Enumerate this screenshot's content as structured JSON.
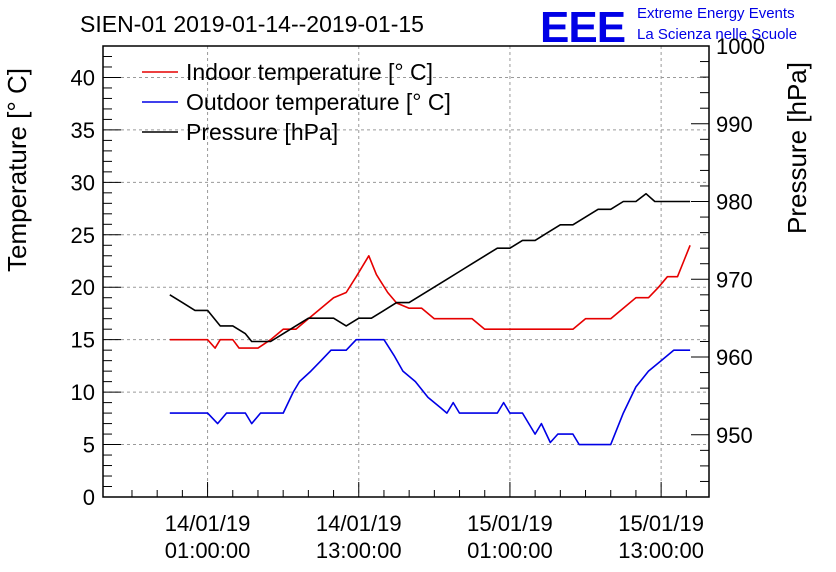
{
  "header": {
    "title": "SIEN-01 2019-01-14--2019-01-15",
    "logo_text": "EEE",
    "logo_line1": "Extreme Energy Events",
    "logo_line2": "La Scienza nelle Scuole"
  },
  "chart_data": {
    "type": "line",
    "title": "SIEN-01 2019-01-14--2019-01-15",
    "xlabel": "",
    "x_unit": "hours since 2019-01-14 00:00:00",
    "xlim": [
      -7.3,
      40.8
    ],
    "x_ticks": [
      {
        "x": 1,
        "line1": "14/01/19",
        "line2": "01:00:00"
      },
      {
        "x": 13,
        "line1": "14/01/19",
        "line2": "13:00:00"
      },
      {
        "x": 25,
        "line1": "15/01/19",
        "line2": "01:00:00"
      },
      {
        "x": 37,
        "line1": "15/01/19",
        "line2": "13:00:00"
      }
    ],
    "left_axis": {
      "label": "Temperature [° C]",
      "ylim": [
        0,
        43
      ],
      "ticks": [
        0,
        5,
        10,
        15,
        20,
        25,
        30,
        35,
        40
      ]
    },
    "right_axis": {
      "label": "Pressure [hPa]",
      "ylim": [
        942,
        1000
      ],
      "ticks": [
        950,
        960,
        970,
        980,
        990,
        1000
      ]
    },
    "grid": true,
    "legend_position": "top-left",
    "series": [
      {
        "name": "Indoor temperature [° C]",
        "color": "#e60000",
        "axis": "left",
        "points": [
          [
            -2.0,
            15
          ],
          [
            1.0,
            15
          ],
          [
            1.6,
            14.2
          ],
          [
            2.0,
            15
          ],
          [
            3.0,
            15
          ],
          [
            3.5,
            14.2
          ],
          [
            5.0,
            14.2
          ],
          [
            6.0,
            15
          ],
          [
            7.0,
            16
          ],
          [
            8.0,
            16
          ],
          [
            9.0,
            17
          ],
          [
            10.0,
            18
          ],
          [
            11.0,
            19
          ],
          [
            12.0,
            19.5
          ],
          [
            12.8,
            21
          ],
          [
            13.8,
            23
          ],
          [
            14.4,
            21.2
          ],
          [
            15.3,
            19.5
          ],
          [
            16.0,
            18.5
          ],
          [
            17.0,
            18
          ],
          [
            18.0,
            18
          ],
          [
            19.0,
            17
          ],
          [
            20.0,
            17
          ],
          [
            21.0,
            17
          ],
          [
            22.0,
            17
          ],
          [
            23.0,
            16
          ],
          [
            24.0,
            16
          ],
          [
            26.0,
            16
          ],
          [
            28.0,
            16
          ],
          [
            30.0,
            16
          ],
          [
            31.0,
            17
          ],
          [
            32.0,
            17
          ],
          [
            33.0,
            17
          ],
          [
            34.0,
            18
          ],
          [
            35.0,
            19
          ],
          [
            36.0,
            19
          ],
          [
            36.8,
            20
          ],
          [
            37.5,
            21
          ],
          [
            38.3,
            21
          ],
          [
            38.8,
            22.5
          ],
          [
            39.3,
            24
          ]
        ]
      },
      {
        "name": "Outdoor temperature [° C]",
        "color": "#0000e6",
        "axis": "left",
        "points": [
          [
            -2.0,
            8
          ],
          [
            1.0,
            8
          ],
          [
            1.8,
            7
          ],
          [
            2.5,
            8
          ],
          [
            4.0,
            8
          ],
          [
            4.5,
            7
          ],
          [
            5.2,
            8
          ],
          [
            7.0,
            8
          ],
          [
            7.8,
            10
          ],
          [
            8.3,
            11
          ],
          [
            9.2,
            12
          ],
          [
            10.0,
            13
          ],
          [
            10.8,
            14
          ],
          [
            12.0,
            14
          ],
          [
            12.8,
            15
          ],
          [
            15.0,
            15
          ],
          [
            15.8,
            13.5
          ],
          [
            16.5,
            12
          ],
          [
            17.5,
            11
          ],
          [
            18.5,
            9.5
          ],
          [
            19.5,
            8.5
          ],
          [
            20.0,
            8
          ],
          [
            20.5,
            9
          ],
          [
            21.0,
            8
          ],
          [
            23.0,
            8
          ],
          [
            24.0,
            8
          ],
          [
            24.5,
            9
          ],
          [
            25.0,
            8
          ],
          [
            26.0,
            8
          ],
          [
            26.5,
            7
          ],
          [
            27.0,
            6
          ],
          [
            27.5,
            7
          ],
          [
            28.2,
            5.2
          ],
          [
            28.8,
            6
          ],
          [
            30.0,
            6
          ],
          [
            30.5,
            5
          ],
          [
            33.0,
            5
          ],
          [
            34.0,
            8
          ],
          [
            35.0,
            10.5
          ],
          [
            36.0,
            12
          ],
          [
            37.0,
            13
          ],
          [
            38.0,
            14
          ],
          [
            39.3,
            14
          ]
        ]
      },
      {
        "name": "Pressure [hPa]",
        "color": "#000000",
        "axis": "right",
        "points": [
          [
            -2.0,
            968
          ],
          [
            -1.0,
            967
          ],
          [
            0.0,
            966
          ],
          [
            1.0,
            966
          ],
          [
            2.0,
            964
          ],
          [
            3.0,
            964
          ],
          [
            4.0,
            963
          ],
          [
            4.5,
            962
          ],
          [
            6.0,
            962
          ],
          [
            7.0,
            963
          ],
          [
            8.0,
            964
          ],
          [
            9.0,
            965
          ],
          [
            10.0,
            965
          ],
          [
            11.0,
            965
          ],
          [
            12.0,
            964
          ],
          [
            13.0,
            965
          ],
          [
            14.0,
            965
          ],
          [
            15.0,
            966
          ],
          [
            16.0,
            967
          ],
          [
            17.0,
            967
          ],
          [
            18.0,
            968
          ],
          [
            19.0,
            969
          ],
          [
            20.0,
            970
          ],
          [
            21.0,
            971
          ],
          [
            22.0,
            972
          ],
          [
            23.0,
            973
          ],
          [
            24.0,
            974
          ],
          [
            25.0,
            974
          ],
          [
            26.0,
            975
          ],
          [
            27.0,
            975
          ],
          [
            28.0,
            976
          ],
          [
            29.0,
            977
          ],
          [
            30.0,
            977
          ],
          [
            31.0,
            978
          ],
          [
            32.0,
            979
          ],
          [
            33.0,
            979
          ],
          [
            34.0,
            980
          ],
          [
            35.0,
            980
          ],
          [
            35.8,
            981
          ],
          [
            36.5,
            980
          ],
          [
            38.0,
            980
          ],
          [
            39.3,
            980
          ]
        ]
      }
    ]
  }
}
